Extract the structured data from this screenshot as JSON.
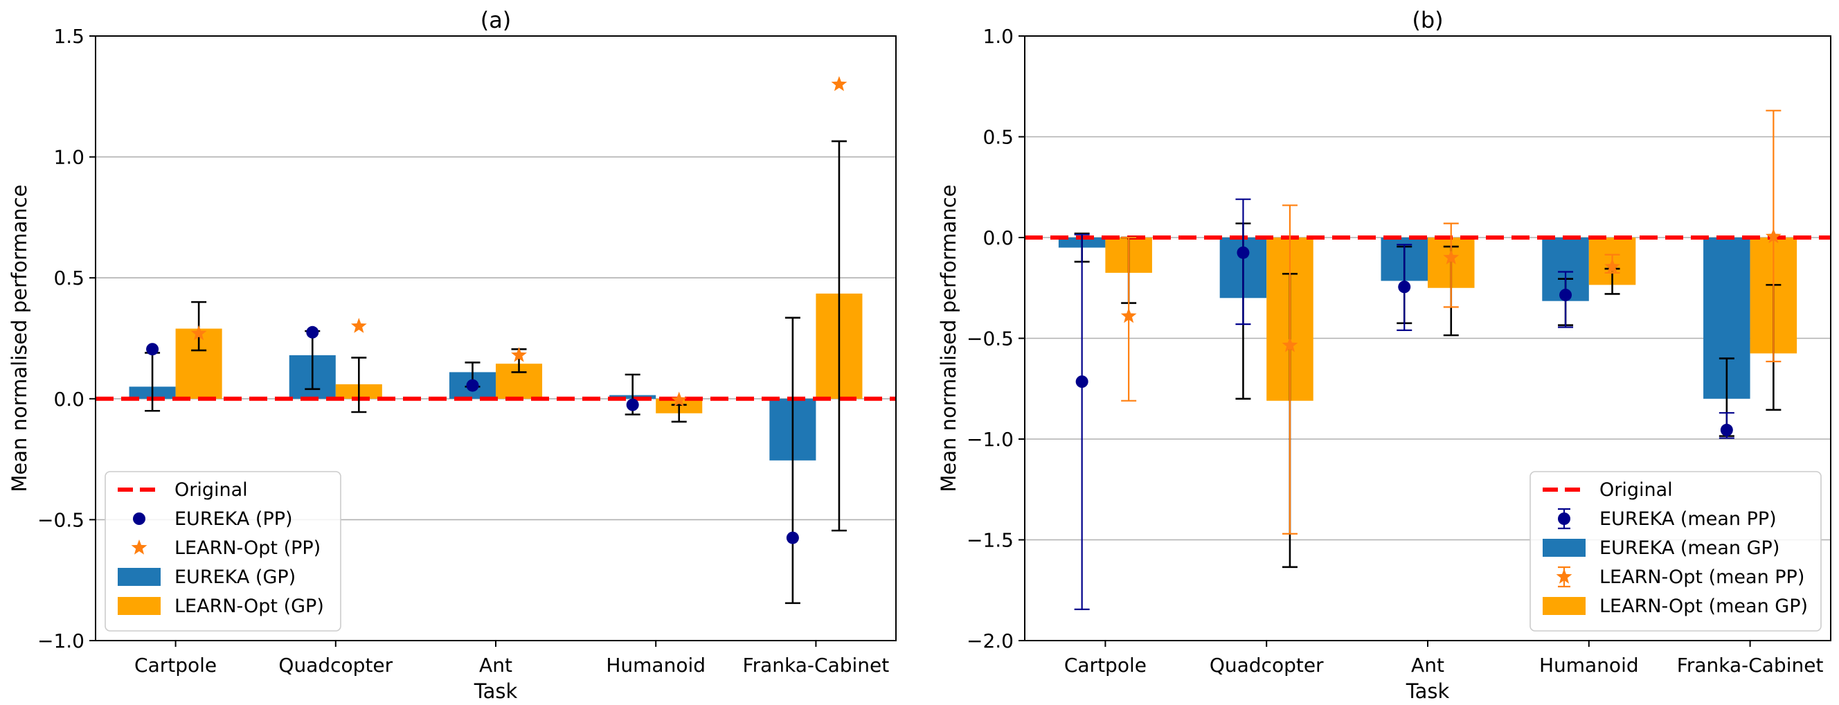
{
  "colors": {
    "eureka_bar": "#1f77b4",
    "learn_bar": "#ffa500",
    "eureka_marker": "#00008b",
    "learn_marker": "#ff7f0e",
    "original_line": "#ff0000",
    "grid": "#b0b0b0",
    "errorbar_black": "#000000"
  },
  "chart_data": [
    {
      "panel": "a",
      "type": "bar",
      "title": "(a)",
      "xlabel": "Task",
      "ylabel": "Mean normalised performance",
      "ylim": [
        -1.0,
        1.5
      ],
      "yticks": [
        -1.0,
        -0.5,
        0.0,
        0.5,
        1.0,
        1.5
      ],
      "ytick_labels": [
        "−1.0",
        "−0.5",
        "0.0",
        "0.5",
        "1.0",
        "1.5"
      ],
      "grid": "y",
      "legend_position": "lower-left",
      "legend": [
        "Original",
        "EUREKA (PP)",
        "LEARN-Opt (PP)",
        "EUREKA (GP)",
        "LEARN-Opt (GP)"
      ],
      "categories": [
        "Cartpole",
        "Quadcopter",
        "Ant",
        "Humanoid",
        "Franka-Cabinet"
      ],
      "original": 0.0,
      "series": [
        {
          "name": "EUREKA (GP)",
          "kind": "bar",
          "values": [
            0.05,
            0.18,
            0.11,
            0.015,
            -0.255
          ],
          "err_low": [
            -0.05,
            0.04,
            0.05,
            -0.065,
            -0.845
          ],
          "err_high": [
            0.19,
            0.28,
            0.15,
            0.1,
            0.335
          ]
        },
        {
          "name": "LEARN-Opt (GP)",
          "kind": "bar",
          "values": [
            0.29,
            0.06,
            0.145,
            -0.06,
            0.435
          ],
          "err_low": [
            0.2,
            -0.055,
            0.11,
            -0.095,
            -0.545
          ],
          "err_high": [
            0.4,
            0.17,
            0.205,
            -0.025,
            1.065
          ]
        },
        {
          "name": "EUREKA (PP)",
          "kind": "point",
          "values": [
            0.205,
            0.275,
            0.055,
            -0.025,
            -0.575
          ]
        },
        {
          "name": "LEARN-Opt (PP)",
          "kind": "point",
          "values": [
            0.27,
            0.3,
            0.18,
            -0.005,
            1.3
          ]
        }
      ]
    },
    {
      "panel": "b",
      "type": "bar",
      "title": "(b)",
      "xlabel": "Task",
      "ylabel": "Mean normalised performance",
      "ylim": [
        -2.0,
        1.0
      ],
      "yticks": [
        -2.0,
        -1.5,
        -1.0,
        -0.5,
        0.0,
        0.5,
        1.0
      ],
      "ytick_labels": [
        "−2.0",
        "−1.5",
        "−1.0",
        "−0.5",
        "0.0",
        "0.5",
        "1.0"
      ],
      "grid": "y",
      "legend_position": "lower-right",
      "legend": [
        "Original",
        "EUREKA (mean PP)",
        "EUREKA (mean GP)",
        "LEARN-Opt (mean PP)",
        "LEARN-Opt (mean GP)"
      ],
      "categories": [
        "Cartpole",
        "Quadcopter",
        "Ant",
        "Humanoid",
        "Franka-Cabinet"
      ],
      "original": 0.0,
      "series": [
        {
          "name": "EUREKA (mean GP)",
          "kind": "bar",
          "values": [
            -0.05,
            -0.3,
            -0.215,
            -0.315,
            -0.8
          ],
          "err_low": [
            -0.12,
            -0.8,
            -0.425,
            -0.435,
            -0.985
          ],
          "err_high": [
            0.02,
            0.07,
            -0.045,
            -0.205,
            -0.6
          ]
        },
        {
          "name": "LEARN-Opt (mean GP)",
          "kind": "bar",
          "values": [
            -0.175,
            -0.81,
            -0.25,
            -0.235,
            -0.575
          ],
          "err_low": [
            -0.325,
            -1.635,
            -0.485,
            -0.28,
            -0.855
          ],
          "err_high": [
            0.0,
            -0.18,
            -0.045,
            -0.155,
            -0.235
          ]
        },
        {
          "name": "EUREKA (mean PP)",
          "kind": "point",
          "values": [
            -0.715,
            -0.075,
            -0.245,
            -0.285,
            -0.955
          ],
          "err_low": [
            -1.845,
            -0.43,
            -0.46,
            -0.445,
            -0.995
          ],
          "err_high": [
            0.015,
            0.19,
            -0.035,
            -0.17,
            -0.87
          ]
        },
        {
          "name": "LEARN-Opt (mean PP)",
          "kind": "point",
          "values": [
            -0.39,
            -0.535,
            -0.1,
            -0.145,
            0.005
          ],
          "err_low": [
            -0.81,
            -1.47,
            -0.345,
            -0.175,
            -0.615
          ],
          "err_high": [
            0.0,
            0.16,
            0.07,
            -0.085,
            0.63
          ]
        }
      ]
    }
  ]
}
